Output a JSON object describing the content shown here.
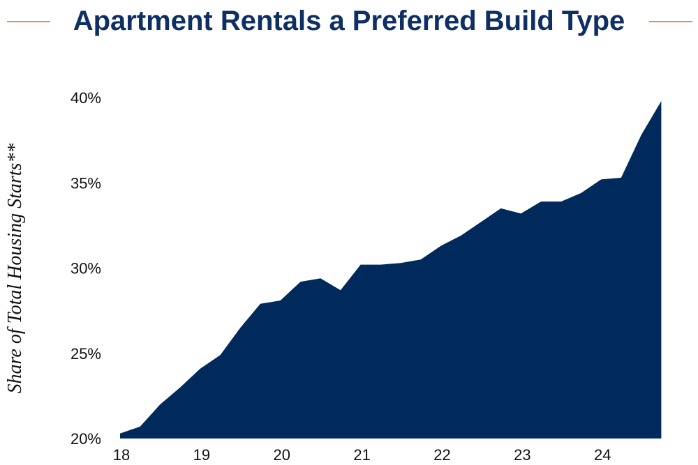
{
  "title": "Apartment Rentals a Preferred Build Type",
  "colors": {
    "accent": "#f08a3c",
    "fill": "#002a5c",
    "text": "#111111",
    "title": "#0d2f63"
  },
  "chart_data": {
    "type": "area",
    "title": "Apartment Rentals a Preferred Build Type",
    "xlabel": "",
    "ylabel": "Share of Total Housing Starts**",
    "ylim": [
      20,
      40
    ],
    "xlim": [
      2018,
      2024.86
    ],
    "grid": false,
    "x_ticks": [
      {
        "label": "18",
        "value": 2018
      },
      {
        "label": "19",
        "value": 2019
      },
      {
        "label": "20",
        "value": 2020
      },
      {
        "label": "21",
        "value": 2021
      },
      {
        "label": "22",
        "value": 2022
      },
      {
        "label": "23",
        "value": 2023
      },
      {
        "label": "24",
        "value": 2024
      }
    ],
    "y_ticks": [
      {
        "label": "20%",
        "value": 20
      },
      {
        "label": "25%",
        "value": 25
      },
      {
        "label": "30%",
        "value": 30
      },
      {
        "label": "35%",
        "value": 35
      },
      {
        "label": "40%",
        "value": 40
      }
    ],
    "series": [
      {
        "x": [
          2018.0,
          2018.25,
          2018.5,
          2018.75,
          2019.0,
          2019.25,
          2019.5,
          2019.75,
          2020.0,
          2020.25,
          2020.5,
          2020.75,
          2021.0,
          2021.25,
          2021.5,
          2021.75,
          2022.0,
          2022.25,
          2022.5,
          2022.75,
          2023.0,
          2023.25,
          2023.5,
          2023.75,
          2024.0,
          2024.25,
          2024.5,
          2024.75
        ],
        "values": [
          20.3,
          20.7,
          22.0,
          23.0,
          24.1,
          24.9,
          26.5,
          27.9,
          28.1,
          29.2,
          29.4,
          28.7,
          30.2,
          30.2,
          30.3,
          30.5,
          31.3,
          31.9,
          32.7,
          33.5,
          33.2,
          33.9,
          33.9,
          34.4,
          35.2,
          35.3,
          37.8,
          39.8
        ]
      }
    ]
  }
}
